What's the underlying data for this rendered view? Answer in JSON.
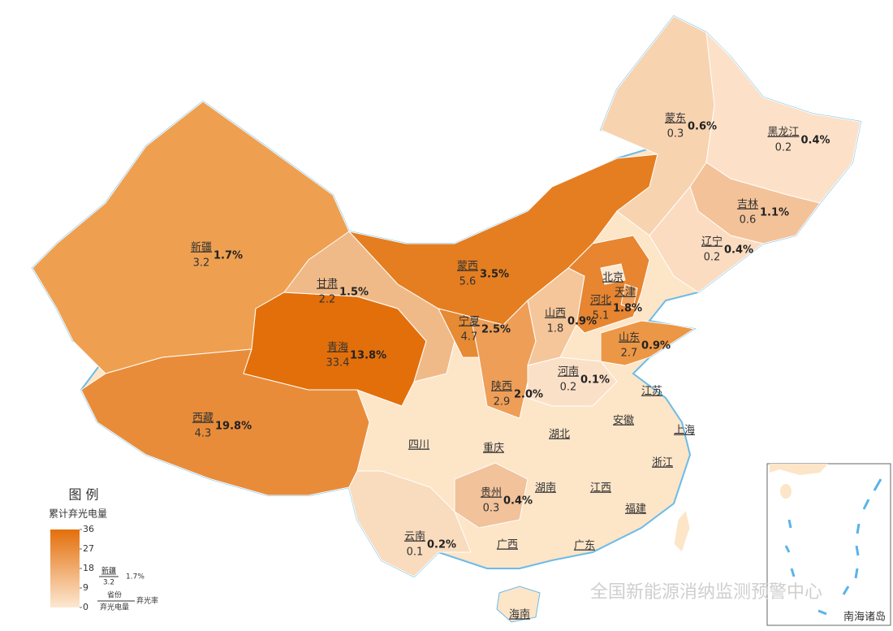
{
  "map": {
    "legend": {
      "title": "图 例",
      "subtitle": "累计弃光电量",
      "range": [
        0,
        36
      ],
      "ticks": [
        0,
        9,
        18,
        27,
        36
      ],
      "colors": [
        "#fde8d2",
        "#e36f0a"
      ],
      "sample": {
        "province": "新疆",
        "amount": "3.2",
        "rate": "1.7%"
      },
      "key": {
        "province": "省份",
        "amount": "弃光电量",
        "rate": "弃光率"
      }
    },
    "background_color": "#fde5c8",
    "provinces": [
      {
        "name": "新疆",
        "amount": 3.2,
        "rate": "1.7%",
        "color": "#eea050"
      },
      {
        "name": "西藏",
        "amount": 4.3,
        "rate": "19.8%",
        "color": "#e98c3a"
      },
      {
        "name": "青海",
        "amount": 33.4,
        "rate": "13.8%",
        "color": "#e36f0a"
      },
      {
        "name": "甘肃",
        "amount": 2.2,
        "rate": "1.5%",
        "color": "#f0ba88"
      },
      {
        "name": "蒙西",
        "amount": 5.6,
        "rate": "3.5%",
        "color": "#e57e20"
      },
      {
        "name": "宁夏",
        "amount": 4.7,
        "rate": "2.5%",
        "color": "#e68a33"
      },
      {
        "name": "陕西",
        "amount": 2.9,
        "rate": "2.0%",
        "color": "#ee9e57"
      },
      {
        "name": "山西",
        "amount": 1.8,
        "rate": "0.9%",
        "color": "#f5c69a"
      },
      {
        "name": "河北",
        "amount": 5.1,
        "rate": "1.8%",
        "color": "#e78530"
      },
      {
        "name": "山东",
        "amount": 2.7,
        "rate": "0.9%",
        "color": "#ec9745"
      },
      {
        "name": "河南",
        "amount": 0.2,
        "rate": "0.1%",
        "color": "#fbe0c8"
      },
      {
        "name": "蒙东",
        "amount": 0.3,
        "rate": "0.6%",
        "color": "#f7d3b0"
      },
      {
        "name": "黑龙江",
        "amount": 0.2,
        "rate": "0.4%",
        "color": "#fce1c8"
      },
      {
        "name": "吉林",
        "amount": 0.6,
        "rate": "1.1%",
        "color": "#f4c299"
      },
      {
        "name": "辽宁",
        "amount": 0.2,
        "rate": "0.4%",
        "color": "#fbdcc0"
      },
      {
        "name": "贵州",
        "amount": 0.3,
        "rate": "0.4%",
        "color": "#f2c29a"
      },
      {
        "name": "云南",
        "amount": 0.1,
        "rate": "0.2%",
        "color": "#f9dbbd"
      },
      {
        "name": "北京",
        "color": "#fde8d2"
      },
      {
        "name": "天津",
        "color": "#f2a45e"
      },
      {
        "name": "四川"
      },
      {
        "name": "重庆"
      },
      {
        "name": "湖北"
      },
      {
        "name": "安徽"
      },
      {
        "name": "江苏"
      },
      {
        "name": "上海"
      },
      {
        "name": "浙江"
      },
      {
        "name": "湖南"
      },
      {
        "name": "江西"
      },
      {
        "name": "福建"
      },
      {
        "name": "广西"
      },
      {
        "name": "广东"
      },
      {
        "name": "海南"
      }
    ],
    "inset_label": "南海诸岛",
    "watermark": "全国新能源消纳监测预警中心"
  }
}
